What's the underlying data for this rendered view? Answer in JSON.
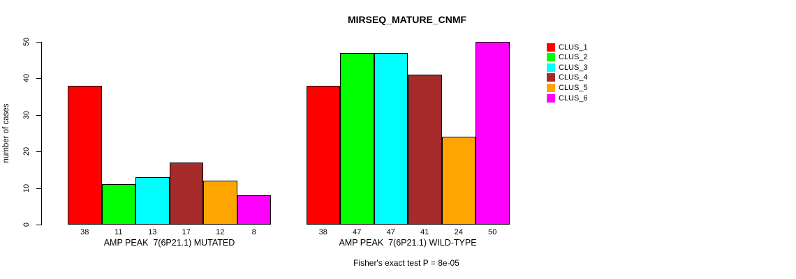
{
  "chart_data": {
    "type": "bar",
    "title": "MIRSEQ_MATURE_CNMF",
    "ylabel": "number of cases",
    "xlabel": "",
    "ylim": [
      0,
      50
    ],
    "yticks": [
      0,
      10,
      20,
      30,
      40,
      50
    ],
    "grid": false,
    "legend_position": "right",
    "series": [
      {
        "name": "CLUS_1",
        "color": "#FF0000"
      },
      {
        "name": "CLUS_2",
        "color": "#00FF00"
      },
      {
        "name": "CLUS_3",
        "color": "#00FFFF"
      },
      {
        "name": "CLUS_4",
        "color": "#A52A2A"
      },
      {
        "name": "CLUS_5",
        "color": "#FFA500"
      },
      {
        "name": "CLUS_6",
        "color": "#FF00FF"
      }
    ],
    "groups": [
      {
        "label": "AMP PEAK  7(6P21.1) MUTATED",
        "values": [
          38,
          11,
          13,
          17,
          12,
          8
        ]
      },
      {
        "label": "AMP PEAK  7(6P21.1) WILD-TYPE",
        "values": [
          38,
          47,
          47,
          41,
          24,
          50
        ]
      }
    ],
    "bar_value_labels": true,
    "annotation": "Fisher's exact test P = 8e-05"
  }
}
